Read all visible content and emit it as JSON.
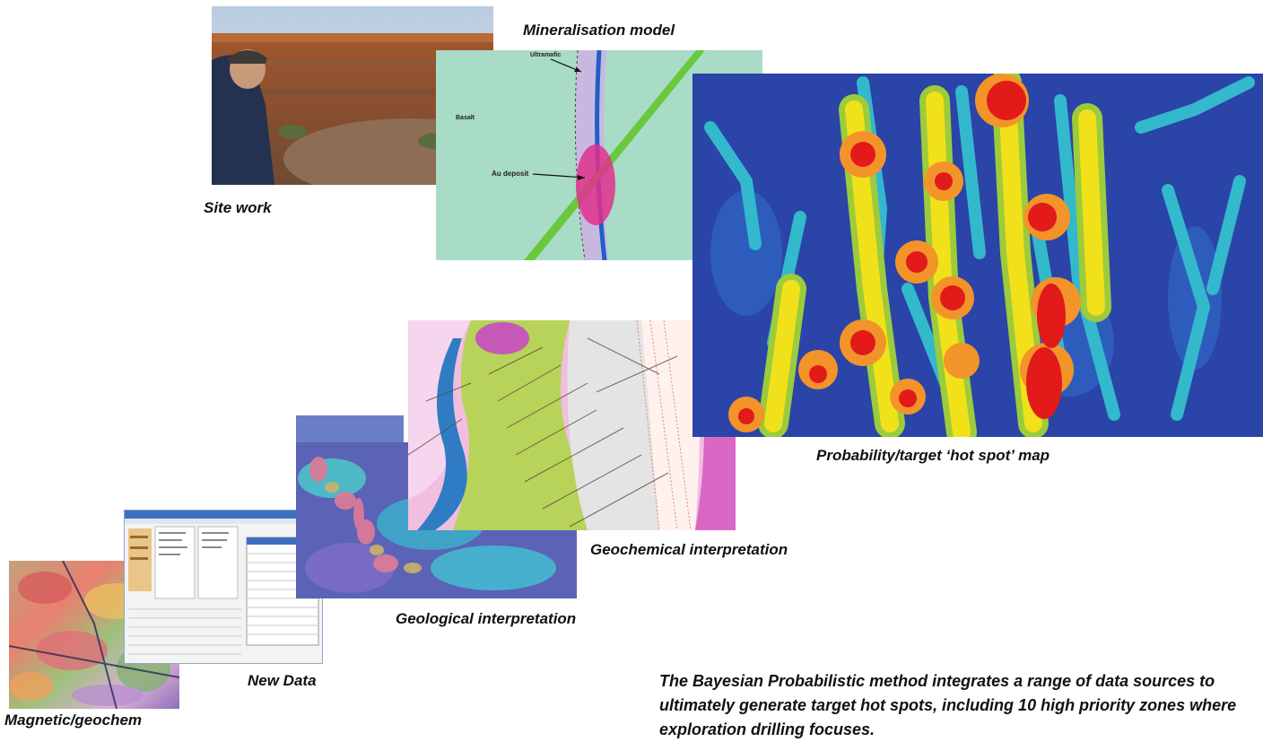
{
  "captions": {
    "site_work": "Site work",
    "mineralisation_model": "Mineralisation model",
    "probability_map": "Probability/target ‘hot spot’ map",
    "geochemical_interpretation": "Geochemical interpretation",
    "geological_interpretation": "Geological interpretation",
    "new_data": "New Data",
    "magnetic_geochem": "Magnetic/geochem"
  },
  "mineralisation_labels": {
    "ultramafic": "Ultramafic",
    "basalt": "Basalt",
    "au_deposit": "Au deposit"
  },
  "description": "The Bayesian Probabilistic method integrates a range of data sources to ultimately generate target hot spots, including 10 high priority zones where exploration drilling focuses."
}
